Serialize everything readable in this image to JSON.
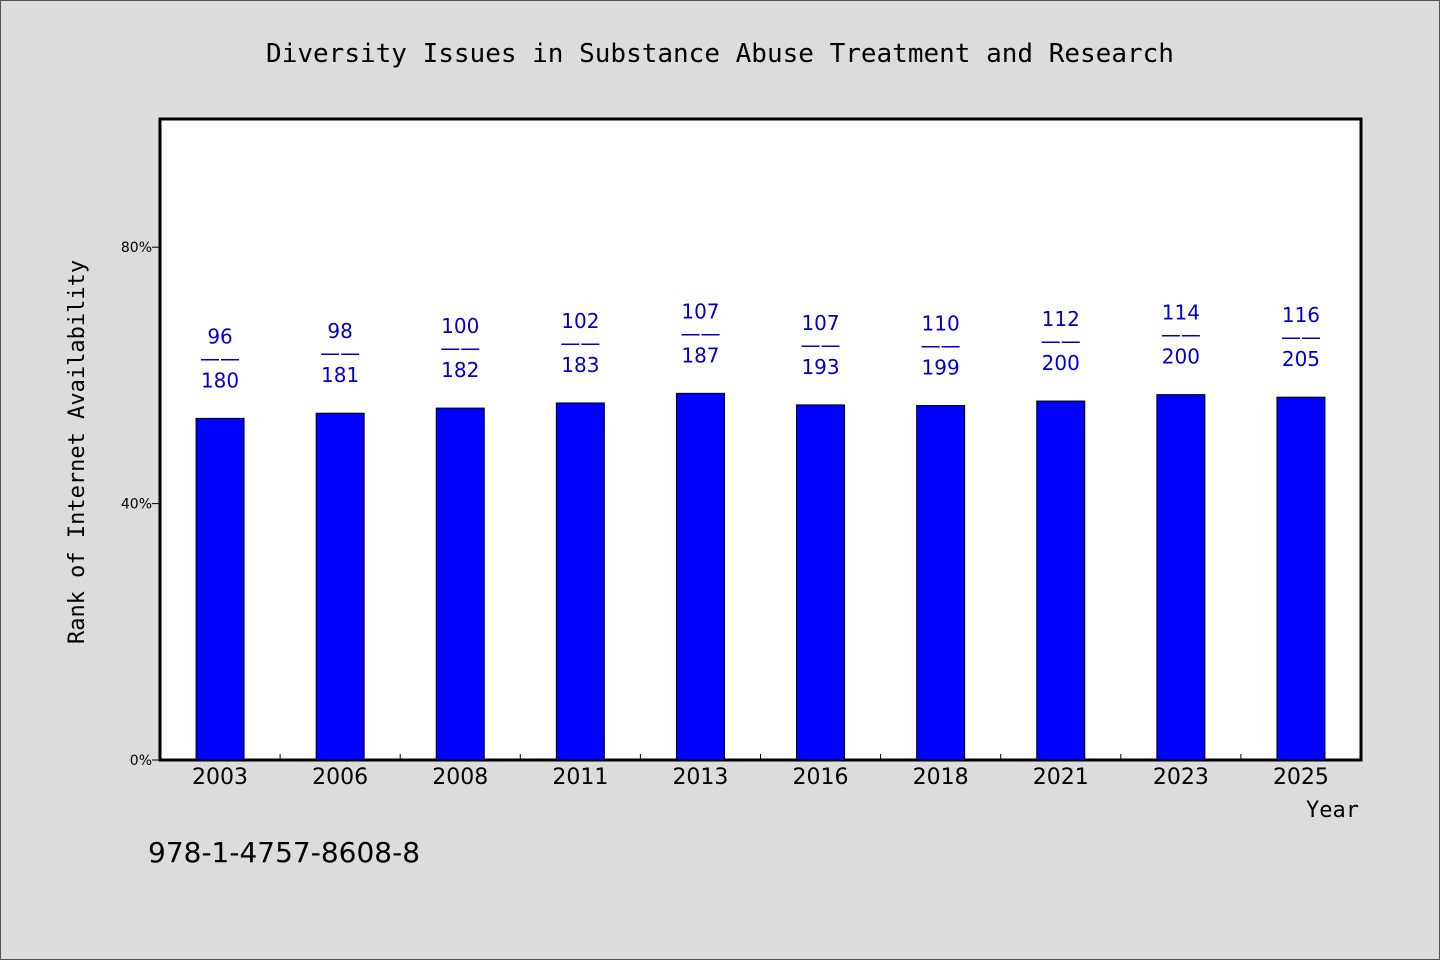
{
  "chart_data": {
    "type": "bar",
    "title": "Diversity Issues in Substance Abuse Treatment and Research",
    "xlabel": "Year",
    "ylabel": "Rank of Internet Availability",
    "categories": [
      "2003",
      "2006",
      "2008",
      "2011",
      "2013",
      "2016",
      "2018",
      "2021",
      "2023",
      "2025"
    ],
    "values": [
      0.533,
      0.541,
      0.549,
      0.557,
      0.572,
      0.554,
      0.553,
      0.56,
      0.57,
      0.566
    ],
    "data_labels": [
      {
        "top": "96",
        "mid": "——",
        "bottom": "180"
      },
      {
        "top": "98",
        "mid": "——",
        "bottom": "181"
      },
      {
        "top": "100",
        "mid": "——",
        "bottom": "182"
      },
      {
        "top": "102",
        "mid": "——",
        "bottom": "183"
      },
      {
        "top": "107",
        "mid": "——",
        "bottom": "187"
      },
      {
        "top": "107",
        "mid": "——",
        "bottom": "193"
      },
      {
        "top": "110",
        "mid": "——",
        "bottom": "199"
      },
      {
        "top": "112",
        "mid": "——",
        "bottom": "200"
      },
      {
        "top": "114",
        "mid": "——",
        "bottom": "200"
      },
      {
        "top": "116",
        "mid": "——",
        "bottom": "205"
      }
    ],
    "y_ticks": [
      {
        "value": 0,
        "label": "0%"
      },
      {
        "value": 0.4,
        "label": "40%"
      },
      {
        "value": 0.8,
        "label": "80%"
      }
    ],
    "ylim": [
      0,
      1.0
    ],
    "grid": false,
    "legend": "none",
    "colors": {
      "bar": "#0000ff",
      "bar_edge": "#000000",
      "data_label": "#0000cc",
      "plot_bg": "#ffffff",
      "page_bg": "#dcdcdc"
    }
  },
  "footer": {
    "isbn": "978-1-4757-8608-8"
  }
}
